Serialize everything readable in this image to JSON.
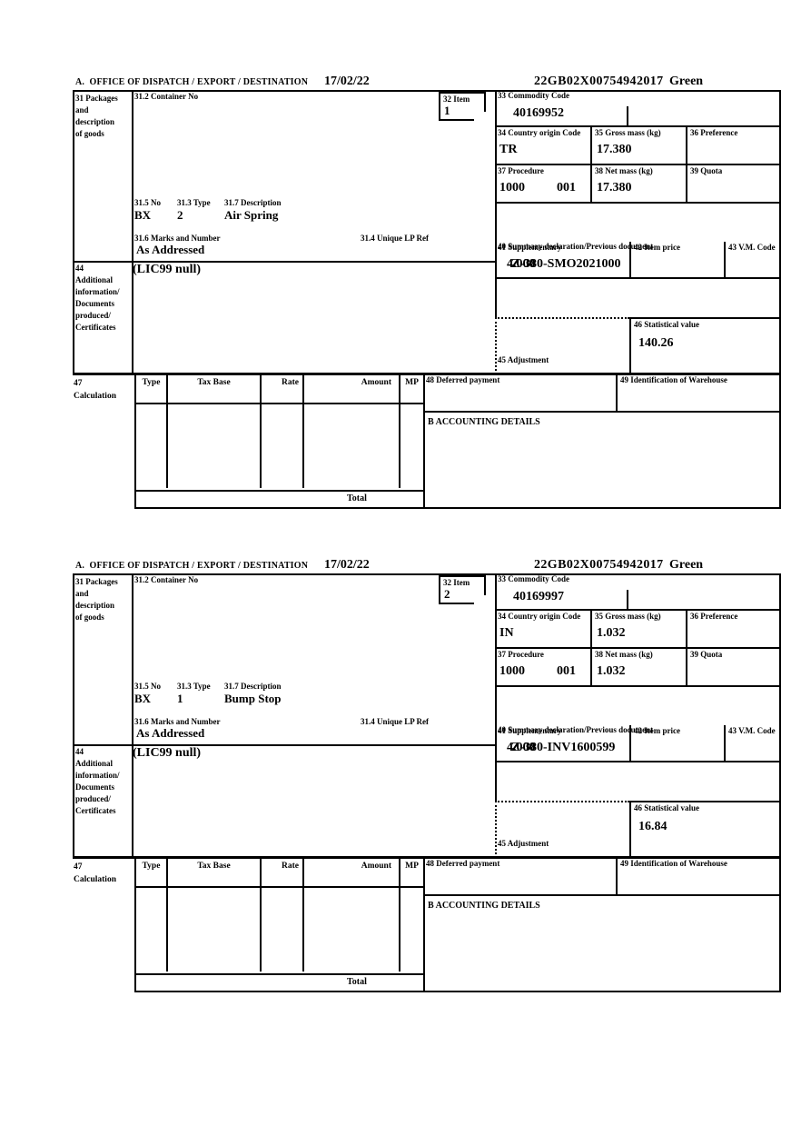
{
  "colors": {
    "paper": "#ffffff",
    "ink": "#000000"
  },
  "header_labels": {
    "office": "A.  OFFICE OF DISPATCH / EXPORT / DESTINATION",
    "date": "17/02/22",
    "mrn": "22GB02X00754942017",
    "route": "Green"
  },
  "box_labels": {
    "b31": "31 Packages\nand\ndescription\nof goods",
    "b31_2": "31.2 Container No",
    "b32": "32 Item",
    "b33": "33 Commodity Code",
    "b34": "34 Country origin Code",
    "b35": "35 Gross mass (kg)",
    "b36": "36 Preference",
    "b37": "37 Procedure",
    "b38": "38 Net mass (kg)",
    "b39": "39 Quota",
    "b31_5": "31.5 No",
    "b31_3": "31.3 Type",
    "b31_7": "31.7 Description",
    "b31_6": "31.6 Marks and Number",
    "b31_4": "31.4 Unique LP Ref",
    "b40": "40 Summary declaration/Previous document",
    "b41": "41 Supplementary",
    "b42": "42 Item price",
    "b43": "43 V.M. Code",
    "b44": "44\nAdditional\ninformation/\nDocuments\nproduced/\nCertificates",
    "b45": "45 Adjustment",
    "b46": "46 Statistical value",
    "b47": "47\nCalculation",
    "b48": "48 Deferred payment",
    "b49": "49 Identification of Warehouse",
    "accounting": "B ACCOUNTING DETAILS",
    "calc_headers": [
      "Type",
      "Tax Base",
      "Rate",
      "Amount",
      "MP"
    ],
    "total": "Total"
  },
  "items": [
    {
      "item_no": "1",
      "container_no": "",
      "commodity_code": "40169952",
      "country_origin_code": "TR",
      "gross_mass_kg": "17.380",
      "preference": "",
      "procedure_1": "1000",
      "procedure_2": "001",
      "net_mass_kg": "17.380",
      "quota": "",
      "packages_no": "BX",
      "packages_type": "2",
      "goods_description": "Air Spring",
      "marks_and_number": "As Addressed",
      "unique_lp_ref": "",
      "summary_declaration": "Z-380-SMO2021000",
      "supplementary_units": "4.000",
      "item_price": "",
      "vm_code": "",
      "additional_information": "(LIC99 null)",
      "adjustment": "",
      "statistical_value": "140.26",
      "deferred_payment": "",
      "warehouse_identification": ""
    },
    {
      "item_no": "2",
      "container_no": "",
      "commodity_code": "40169997",
      "country_origin_code": "IN",
      "gross_mass_kg": "1.032",
      "preference": "",
      "procedure_1": "1000",
      "procedure_2": "001",
      "net_mass_kg": "1.032",
      "quota": "",
      "packages_no": "BX",
      "packages_type": "1",
      "goods_description": "Bump Stop",
      "marks_and_number": "As Addressed",
      "unique_lp_ref": "",
      "summary_declaration": "Z-380-INV1600599",
      "supplementary_units": "4.000",
      "item_price": "",
      "vm_code": "",
      "additional_information": "(LIC99 null)",
      "adjustment": "",
      "statistical_value": "16.84",
      "deferred_payment": "",
      "warehouse_identification": ""
    }
  ]
}
